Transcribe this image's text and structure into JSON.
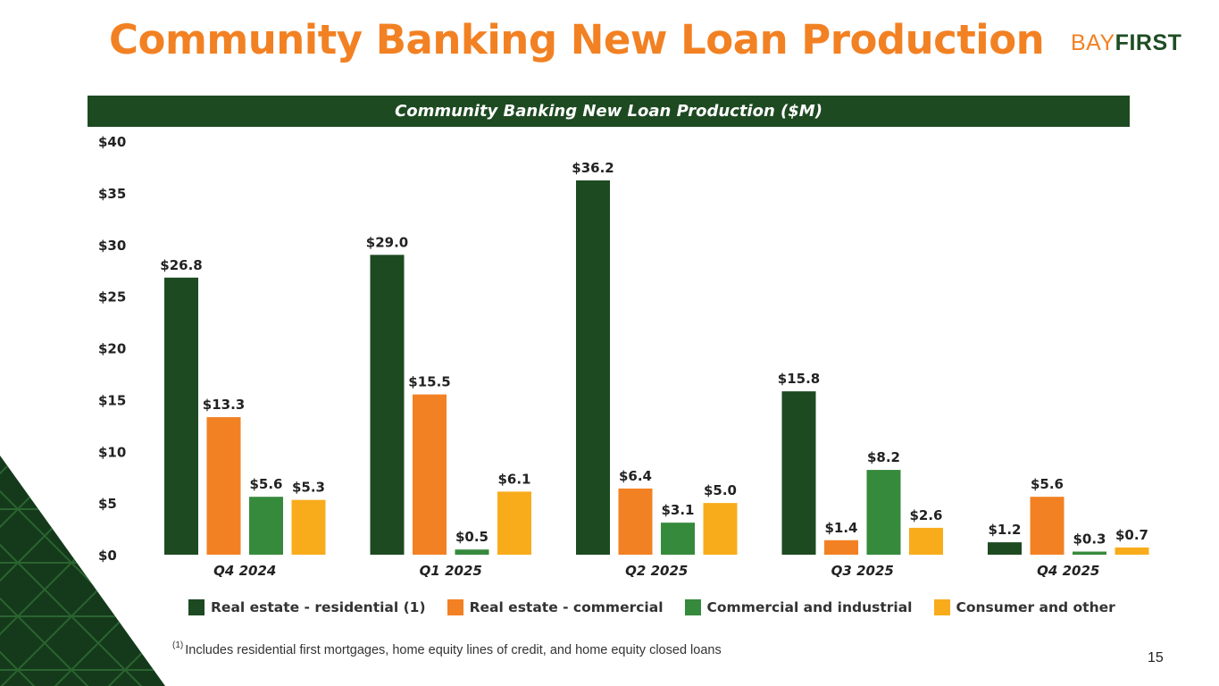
{
  "page": {
    "title": "Community Banking New Loan Production",
    "logo_part1": "BAY",
    "logo_part2": "FIRST",
    "page_number": "15",
    "footnote_marker": "(1)",
    "footnote_text": "Includes residential first mortgages, home equity lines of credit, and home equity closed loans"
  },
  "colors": {
    "title": "#F28123",
    "banner": "#1E4A22",
    "series": [
      "#1E4A22",
      "#F28123",
      "#368A3C",
      "#F8AC1C"
    ]
  },
  "chart_data": {
    "type": "bar",
    "title": "Community Banking New Loan Production ($M)",
    "categories": [
      "Q4 2024",
      "Q1 2025",
      "Q2 2025",
      "Q3 2025",
      "Q4 2025"
    ],
    "series": [
      {
        "name": "Real estate - residential (1)",
        "values": [
          26.8,
          29.0,
          36.2,
          15.8,
          1.2
        ],
        "labels": [
          "$26.8",
          "$29.0",
          "$36.2",
          "$15.8",
          "$1.2"
        ]
      },
      {
        "name": "Real estate - commercial",
        "values": [
          13.3,
          15.5,
          6.4,
          1.4,
          5.6
        ],
        "labels": [
          "$13.3",
          "$15.5",
          "$6.4",
          "$1.4",
          "$5.6"
        ]
      },
      {
        "name": "Commercial and industrial",
        "values": [
          5.6,
          0.5,
          3.1,
          8.2,
          0.3
        ],
        "labels": [
          "$5.6",
          "$0.5",
          "$3.1",
          "$8.2",
          "$0.3"
        ]
      },
      {
        "name": "Consumer and other",
        "values": [
          5.3,
          6.1,
          5.0,
          2.6,
          0.7
        ],
        "labels": [
          "$5.3",
          "$6.1",
          "$5.0",
          "$2.6",
          "$0.7"
        ]
      }
    ],
    "yticks": [
      "$0",
      "$5",
      "$10",
      "$15",
      "$20",
      "$25",
      "$30",
      "$35",
      "$40"
    ],
    "ylim": [
      0,
      40
    ],
    "grid": false,
    "legend_position": "bottom"
  }
}
